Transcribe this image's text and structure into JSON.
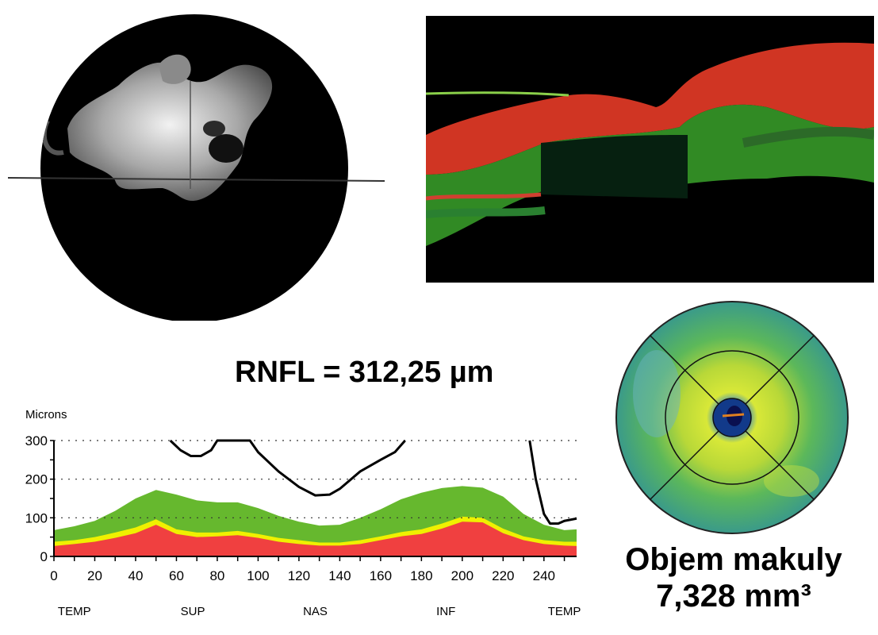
{
  "rnfl": {
    "label": "RNFL = 312,25 µm"
  },
  "volume": {
    "line1": "Objem makuly",
    "line2": "7,328 mm³"
  },
  "colors": {
    "normal_band": "#66b82e",
    "borderline_band": "#f0f000",
    "below_normal_band": "#f04040",
    "patient_line": "#000000"
  },
  "chart_data": {
    "type": "area",
    "ylabel": "Microns",
    "xlabel": "",
    "xlim": [
      0,
      256
    ],
    "ylim": [
      0,
      300
    ],
    "x_ticks": [
      0,
      20,
      40,
      60,
      80,
      100,
      120,
      140,
      160,
      180,
      200,
      220,
      240
    ],
    "y_ticks": [
      0,
      100,
      200,
      300
    ],
    "region_labels": [
      {
        "text": "TEMP",
        "x": 10
      },
      {
        "text": "SUP",
        "x": 68
      },
      {
        "text": "NAS",
        "x": 128
      },
      {
        "text": "INF",
        "x": 192
      },
      {
        "text": "TEMP",
        "x": 250
      }
    ],
    "grid": "dotted horizontal at 100, 200, 300",
    "x": [
      0,
      10,
      20,
      30,
      40,
      50,
      60,
      70,
      80,
      90,
      100,
      110,
      120,
      130,
      140,
      150,
      160,
      170,
      180,
      190,
      200,
      210,
      220,
      230,
      240,
      250,
      256
    ],
    "series": [
      {
        "values": [
          27,
          32,
          38,
          48,
          60,
          82,
          58,
          50,
          52,
          55,
          48,
          38,
          32,
          28,
          28,
          32,
          42,
          52,
          58,
          72,
          90,
          88,
          60,
          42,
          32,
          28,
          27
        ]
      },
      {
        "values": [
          38,
          42,
          50,
          62,
          75,
          96,
          70,
          62,
          62,
          66,
          58,
          48,
          42,
          36,
          36,
          42,
          52,
          63,
          70,
          85,
          103,
          100,
          72,
          52,
          42,
          38,
          38
        ]
      },
      {
        "values": [
          68,
          78,
          92,
          118,
          150,
          172,
          160,
          145,
          140,
          140,
          125,
          105,
          90,
          80,
          82,
          100,
          122,
          148,
          165,
          177,
          182,
          178,
          155,
          110,
          82,
          68,
          70
        ]
      },
      {
        "x": [
          233,
          236,
          240,
          243,
          247,
          250,
          256
        ],
        "values": [
          300,
          200,
          110,
          85,
          85,
          92,
          98
        ]
      },
      {
        "x": [
          57,
          62,
          67,
          72,
          77,
          80,
          96,
          100,
          110,
          120,
          128,
          135,
          140,
          150,
          160,
          167,
          172
        ],
        "values": [
          300,
          275,
          260,
          260,
          275,
          300,
          300,
          270,
          220,
          180,
          158,
          160,
          175,
          220,
          250,
          270,
          300
        ]
      }
    ]
  }
}
